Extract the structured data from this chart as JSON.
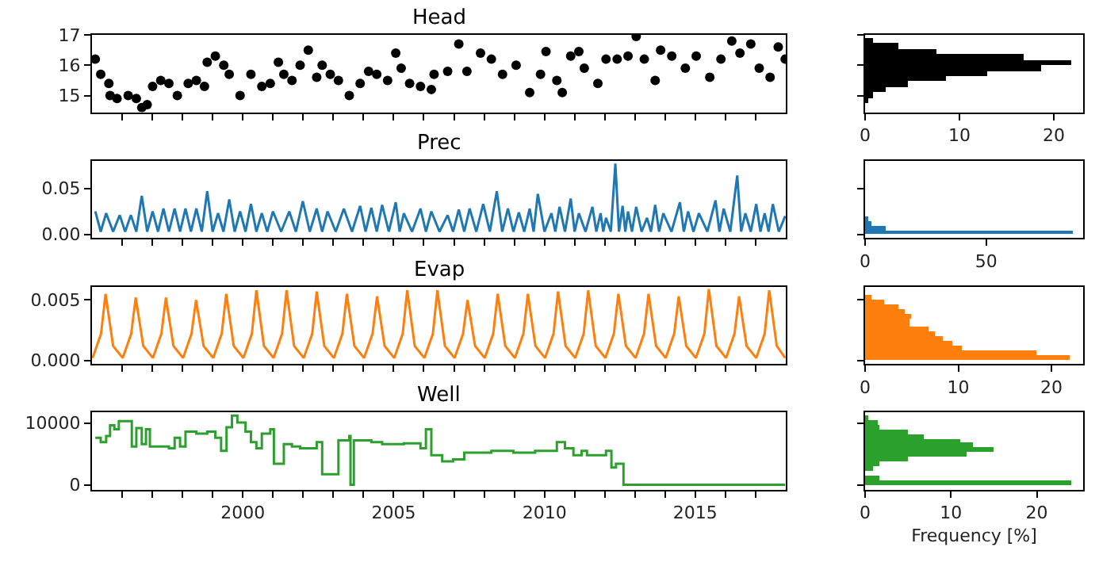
{
  "chart_data": [
    {
      "type": "scatter",
      "title": "Head",
      "marker": "circle",
      "color": "#000000",
      "tick_labels": "y",
      "x": [
        1995.11,
        1995.29,
        1995.56,
        1995.6,
        1995.83,
        1996.2,
        1996.47,
        1996.65,
        1996.83,
        1997.01,
        1997.28,
        1997.55,
        1997.83,
        1998.19,
        1998.46,
        1998.73,
        1998.82,
        1999.09,
        1999.37,
        1999.55,
        1999.91,
        2000.27,
        2000.63,
        2000.91,
        2001.18,
        2001.36,
        2001.63,
        2001.9,
        2002.17,
        2002.45,
        2002.63,
        2002.9,
        2003.17,
        2003.53,
        2003.89,
        2004.17,
        2004.44,
        2004.8,
        2005.07,
        2005.25,
        2005.53,
        2005.89,
        2006.25,
        2006.34,
        2006.79,
        2007.16,
        2007.43,
        2007.88,
        2008.24,
        2008.61,
        2009.06,
        2009.51,
        2009.87,
        2010.05,
        2010.41,
        2010.59,
        2010.87,
        2011.14,
        2011.32,
        2011.77,
        2012.04,
        2012.41,
        2012.77,
        2013.04,
        2013.31,
        2013.67,
        2013.85,
        2014.22,
        2014.67,
        2015.03,
        2015.48,
        2015.85,
        2016.21,
        2016.48,
        2016.84,
        2017.12,
        2017.48,
        2017.75,
        2017.98
      ],
      "values": [
        16.2,
        15.7,
        15.4,
        15.0,
        14.9,
        15.0,
        14.9,
        14.6,
        14.7,
        15.3,
        15.5,
        15.4,
        15.0,
        15.4,
        15.5,
        15.3,
        16.1,
        16.3,
        16.0,
        15.7,
        15.0,
        15.7,
        15.3,
        15.4,
        16.1,
        15.7,
        15.5,
        16.0,
        16.5,
        15.6,
        16.0,
        15.7,
        15.5,
        15.0,
        15.4,
        15.8,
        15.7,
        15.5,
        16.4,
        15.9,
        15.4,
        15.3,
        15.2,
        15.7,
        15.8,
        16.7,
        15.8,
        16.4,
        16.2,
        15.7,
        16.0,
        15.1,
        15.7,
        16.45,
        15.5,
        15.1,
        16.3,
        16.45,
        15.9,
        15.4,
        16.2,
        16.2,
        16.3,
        16.95,
        16.2,
        15.5,
        16.5,
        16.3,
        15.9,
        16.3,
        15.6,
        16.2,
        16.8,
        16.4,
        16.7,
        15.9,
        15.6,
        16.6,
        16.2
      ],
      "xlim": [
        1995,
        2018
      ],
      "xticks": [
        {
          "value": 1996,
          "label": null
        },
        {
          "value": 1997,
          "label": null
        },
        {
          "value": 1998,
          "label": null
        },
        {
          "value": 1999,
          "label": null
        },
        2000,
        {
          "value": 2001,
          "label": null
        },
        {
          "value": 2002,
          "label": null
        },
        {
          "value": 2003,
          "label": null
        },
        {
          "value": 2004,
          "label": null
        },
        2005,
        {
          "value": 2006,
          "label": null
        },
        {
          "value": 2007,
          "label": null
        },
        {
          "value": 2008,
          "label": null
        },
        {
          "value": 2009,
          "label": null
        },
        2010,
        {
          "value": 2011,
          "label": null
        },
        {
          "value": 2012,
          "label": null
        },
        {
          "value": 2013,
          "label": null
        },
        {
          "value": 2014,
          "label": null
        },
        2015,
        {
          "value": 2016,
          "label": null
        },
        {
          "value": 2017,
          "label": null
        }
      ],
      "ylim": [
        14.45,
        17.0
      ],
      "yticks": [
        15,
        16,
        17
      ]
    },
    {
      "type": "histogram",
      "orientation": "horizontal",
      "color": "#000000",
      "tick_labels": "x",
      "bins": [
        14.74,
        14.92,
        15.1,
        15.28,
        15.46,
        15.64,
        15.82,
        16.0,
        16.18,
        16.36,
        16.54,
        16.72,
        16.9
      ],
      "values": [
        0.4,
        0.9,
        2.2,
        4.5,
        8.5,
        12.9,
        18.6,
        21.9,
        16.8,
        7.5,
        3.6,
        0.9
      ],
      "xlim": [
        0,
        23.1
      ],
      "xticks": [
        0,
        10,
        20
      ],
      "ylim": [
        14.45,
        17.0
      ],
      "yticks": [
        15,
        16,
        17
      ]
    },
    {
      "type": "line",
      "title": "Prec",
      "color": "#1f77b4",
      "tick_labels": "y",
      "x": [
        1995.11,
        1995.29,
        1995.47,
        1995.7,
        1995.92,
        1996.1,
        1996.29,
        1996.47,
        1996.65,
        1996.83,
        1997.01,
        1997.19,
        1997.37,
        1997.55,
        1997.74,
        1997.92,
        1998.1,
        1998.28,
        1998.46,
        1998.64,
        1998.82,
        1999.0,
        1999.18,
        1999.36,
        1999.55,
        1999.73,
        1999.91,
        2000.09,
        2000.27,
        2000.45,
        2000.63,
        2000.81,
        2001.0,
        2001.27,
        2001.54,
        2001.76,
        2001.99,
        2002.22,
        2002.45,
        2002.63,
        2002.81,
        2003.08,
        2003.35,
        2003.62,
        2003.89,
        2004.07,
        2004.26,
        2004.44,
        2004.62,
        2004.84,
        2005.07,
        2005.2,
        2005.34,
        2005.61,
        2005.89,
        2006.07,
        2006.25,
        2006.52,
        2006.79,
        2006.97,
        2007.16,
        2007.34,
        2007.52,
        2007.74,
        2007.97,
        2008.19,
        2008.42,
        2008.6,
        2008.79,
        2008.97,
        2009.15,
        2009.33,
        2009.51,
        2009.64,
        2009.78,
        2010.0,
        2010.23,
        2010.36,
        2010.5,
        2010.68,
        2010.87,
        2011.0,
        2011.14,
        2011.36,
        2011.59,
        2011.72,
        2011.86,
        2011.95,
        2012.04,
        2012.2,
        2012.35,
        2012.47,
        2012.59,
        2012.68,
        2012.77,
        2012.9,
        2013.04,
        2013.22,
        2013.4,
        2013.53,
        2013.67,
        2013.8,
        2013.94,
        2014.21,
        2014.49,
        2014.62,
        2014.76,
        2014.94,
        2015.12,
        2015.4,
        2015.67,
        2015.8,
        2015.94,
        2016.16,
        2016.39,
        2016.52,
        2016.66,
        2016.84,
        2017.02,
        2017.16,
        2017.3,
        2017.43,
        2017.57,
        2017.77,
        2017.98
      ],
      "values": [
        0.025,
        0.003,
        0.023,
        0.003,
        0.021,
        0.003,
        0.021,
        0.003,
        0.042,
        0.003,
        0.025,
        0.003,
        0.028,
        0.003,
        0.028,
        0.003,
        0.028,
        0.003,
        0.028,
        0.003,
        0.047,
        0.003,
        0.023,
        0.003,
        0.038,
        0.003,
        0.025,
        0.003,
        0.033,
        0.003,
        0.023,
        0.003,
        0.025,
        0.003,
        0.025,
        0.003,
        0.036,
        0.003,
        0.028,
        0.003,
        0.025,
        0.003,
        0.028,
        0.003,
        0.031,
        0.003,
        0.029,
        0.003,
        0.032,
        0.003,
        0.035,
        0.003,
        0.023,
        0.003,
        0.028,
        0.003,
        0.025,
        0.003,
        0.021,
        0.003,
        0.027,
        0.003,
        0.028,
        0.003,
        0.033,
        0.003,
        0.047,
        0.003,
        0.028,
        0.003,
        0.024,
        0.003,
        0.028,
        0.003,
        0.044,
        0.003,
        0.023,
        0.003,
        0.03,
        0.003,
        0.039,
        0.003,
        0.023,
        0.003,
        0.03,
        0.003,
        0.023,
        0.003,
        0.018,
        0.003,
        0.077,
        0.003,
        0.031,
        0.003,
        0.025,
        0.003,
        0.03,
        0.003,
        0.018,
        0.003,
        0.032,
        0.003,
        0.023,
        0.003,
        0.035,
        0.003,
        0.025,
        0.003,
        0.023,
        0.003,
        0.037,
        0.003,
        0.028,
        0.003,
        0.064,
        0.003,
        0.023,
        0.003,
        0.033,
        0.003,
        0.023,
        0.003,
        0.033,
        0.003,
        0.02
      ],
      "xlim": [
        1995,
        2018
      ],
      "xticks": [
        {
          "value": 1996,
          "label": null
        },
        {
          "value": 1997,
          "label": null
        },
        {
          "value": 1998,
          "label": null
        },
        {
          "value": 1999,
          "label": null
        },
        2000,
        {
          "value": 2001,
          "label": null
        },
        {
          "value": 2002,
          "label": null
        },
        {
          "value": 2003,
          "label": null
        },
        {
          "value": 2004,
          "label": null
        },
        2005,
        {
          "value": 2006,
          "label": null
        },
        {
          "value": 2007,
          "label": null
        },
        {
          "value": 2008,
          "label": null
        },
        {
          "value": 2009,
          "label": null
        },
        2010,
        {
          "value": 2011,
          "label": null
        },
        {
          "value": 2012,
          "label": null
        },
        {
          "value": 2013,
          "label": null
        },
        {
          "value": 2014,
          "label": null
        },
        2015,
        {
          "value": 2016,
          "label": null
        },
        {
          "value": 2017,
          "label": null
        }
      ],
      "ylim": [
        -0.004,
        0.08
      ],
      "yticks": [
        {
          "value": 0,
          "label": "0.00"
        },
        0.05
      ]
    },
    {
      "type": "histogram",
      "orientation": "horizontal",
      "color": "#1f77b4",
      "tick_labels": "x",
      "bins": [
        0,
        0.005,
        0.01,
        0.015,
        0.02
      ],
      "values": [
        86,
        8.6,
        2.8,
        0.9
      ],
      "xlim": [
        0,
        90
      ],
      "xticks": [
        0,
        50
      ],
      "ylim": [
        -0.004,
        0.08
      ],
      "yticks": [
        0,
        0.05
      ]
    },
    {
      "type": "line",
      "title": "Evap",
      "color": "#ff7f0e",
      "tick_labels": "y",
      "x": [
        1995.02,
        1995.3,
        1995.45,
        1995.7,
        1996.02,
        1996.3,
        1996.45,
        1996.7,
        1997.02,
        1997.3,
        1997.45,
        1997.7,
        1998.02,
        1998.3,
        1998.45,
        1998.7,
        1999.02,
        1999.3,
        1999.45,
        1999.7,
        2000.02,
        2000.3,
        2000.45,
        2000.7,
        2001.02,
        2001.3,
        2001.45,
        2001.7,
        2002.02,
        2002.3,
        2002.45,
        2002.7,
        2003.02,
        2003.3,
        2003.45,
        2003.7,
        2004.02,
        2004.3,
        2004.45,
        2004.7,
        2005.02,
        2005.3,
        2005.45,
        2005.7,
        2006.02,
        2006.3,
        2006.45,
        2006.7,
        2007.02,
        2007.3,
        2007.45,
        2007.7,
        2008.02,
        2008.3,
        2008.45,
        2008.7,
        2009.02,
        2009.3,
        2009.45,
        2009.7,
        2010.02,
        2010.3,
        2010.45,
        2010.7,
        2011.02,
        2011.3,
        2011.45,
        2011.7,
        2012.02,
        2012.3,
        2012.45,
        2012.7,
        2013.02,
        2013.3,
        2013.45,
        2013.7,
        2014.02,
        2014.3,
        2014.45,
        2014.7,
        2015.02,
        2015.3,
        2015.45,
        2015.7,
        2016.02,
        2016.3,
        2016.45,
        2016.7,
        2017.02,
        2017.3,
        2017.45,
        2017.7,
        2017.98
      ],
      "values": [
        0.0002,
        0.0022,
        0.0055,
        0.0012,
        0.0002,
        0.0022,
        0.0052,
        0.0012,
        0.0002,
        0.0022,
        0.0052,
        0.0012,
        0.0002,
        0.0022,
        0.005,
        0.0012,
        0.0002,
        0.0022,
        0.0055,
        0.0012,
        0.0002,
        0.0022,
        0.0058,
        0.0012,
        0.0002,
        0.0022,
        0.0058,
        0.0012,
        0.0002,
        0.0022,
        0.0057,
        0.0012,
        0.0002,
        0.0022,
        0.0055,
        0.0012,
        0.0002,
        0.0022,
        0.0053,
        0.0012,
        0.0002,
        0.0022,
        0.0058,
        0.0012,
        0.0002,
        0.0022,
        0.0058,
        0.0012,
        0.0002,
        0.0022,
        0.005,
        0.0012,
        0.0002,
        0.0022,
        0.0055,
        0.0012,
        0.0002,
        0.0022,
        0.0055,
        0.0012,
        0.0002,
        0.0022,
        0.0057,
        0.0012,
        0.0002,
        0.0022,
        0.0058,
        0.0012,
        0.0002,
        0.0022,
        0.0055,
        0.0012,
        0.0002,
        0.0022,
        0.0055,
        0.0012,
        0.0002,
        0.0022,
        0.0053,
        0.0012,
        0.0002,
        0.0022,
        0.0059,
        0.0012,
        0.0002,
        0.0022,
        0.0053,
        0.0012,
        0.0002,
        0.0022,
        0.0058,
        0.0012,
        0.0002
      ],
      "xlim": [
        1995,
        2018
      ],
      "xticks": [
        {
          "value": 1996,
          "label": null
        },
        {
          "value": 1997,
          "label": null
        },
        {
          "value": 1998,
          "label": null
        },
        {
          "value": 1999,
          "label": null
        },
        2000,
        {
          "value": 2001,
          "label": null
        },
        {
          "value": 2002,
          "label": null
        },
        {
          "value": 2003,
          "label": null
        },
        {
          "value": 2004,
          "label": null
        },
        2005,
        {
          "value": 2006,
          "label": null
        },
        {
          "value": 2007,
          "label": null
        },
        {
          "value": 2008,
          "label": null
        },
        {
          "value": 2009,
          "label": null
        },
        2010,
        {
          "value": 2011,
          "label": null
        },
        {
          "value": 2012,
          "label": null
        },
        {
          "value": 2013,
          "label": null
        },
        {
          "value": 2014,
          "label": null
        },
        2015,
        {
          "value": 2016,
          "label": null
        },
        {
          "value": 2017,
          "label": null
        }
      ],
      "ylim": [
        -0.0003,
        0.0061
      ],
      "yticks": [
        {
          "value": 0,
          "label": "0.000"
        },
        0.005
      ]
    },
    {
      "type": "histogram",
      "orientation": "horizontal",
      "color": "#ff7f0e",
      "tick_labels": "x",
      "bins": [
        0.0001,
        0.00048,
        0.00086,
        0.00124,
        0.00162,
        0.002,
        0.00239,
        0.00277,
        0.00315,
        0.00353,
        0.00391,
        0.00429,
        0.00467,
        0.00505,
        0.00543
      ],
      "values": [
        21.9,
        18.3,
        10.4,
        9.3,
        8.3,
        7.5,
        6.8,
        4.7,
        4.7,
        4.9,
        4.2,
        3.5,
        2.1,
        0.7
      ],
      "xlim": [
        0,
        23.4
      ],
      "xticks": [
        0,
        10,
        20
      ],
      "ylim": [
        -0.0003,
        0.0061
      ],
      "yticks": [
        0,
        0.005
      ]
    },
    {
      "type": "step",
      "title": "Well",
      "color": "#2ca02c",
      "x": [
        1995.11,
        1995.29,
        1995.47,
        1995.6,
        1995.74,
        1995.89,
        1996.2,
        1996.32,
        1996.47,
        1996.65,
        1996.79,
        1996.92,
        1997.37,
        1997.55,
        1997.74,
        1997.92,
        1998.1,
        1998.46,
        1998.82,
        1999.09,
        1999.28,
        1999.46,
        1999.64,
        1999.82,
        2000.09,
        2000.27,
        2000.45,
        2000.63,
        2000.91,
        2001.03,
        2001.36,
        2001.63,
        2001.9,
        2002.45,
        2002.63,
        2003.08,
        2003.17,
        2003.53,
        2003.57,
        2003.68,
        2004.26,
        2004.62,
        2005.34,
        2005.89,
        2006.07,
        2006.25,
        2006.61,
        2006.97,
        2007.34,
        2008.24,
        2008.97,
        2009.69,
        2010.05,
        2010.41,
        2010.68,
        2010.96,
        2011.23,
        2011.41,
        2011.86,
        2012.04,
        2012.22,
        2012.37,
        2012.62,
        2017.98
      ],
      "values": [
        7600,
        6900,
        7900,
        9650,
        9000,
        10300,
        10300,
        6200,
        9200,
        6600,
        9000,
        6200,
        6200,
        5900,
        7600,
        6200,
        8600,
        8300,
        8600,
        7600,
        5500,
        9300,
        11200,
        10100,
        8600,
        6900,
        5900,
        8300,
        9000,
        3400,
        6600,
        6200,
        5900,
        6900,
        1700,
        1700,
        7200,
        7900,
        0,
        7200,
        6900,
        6600,
        6700,
        5900,
        9000,
        4800,
        3800,
        4100,
        5200,
        5500,
        5200,
        5500,
        5500,
        6900,
        5900,
        4800,
        5500,
        4800,
        4800,
        5500,
        2800,
        3400,
        0,
        0
      ],
      "xlim": [
        1995,
        2018
      ],
      "xticks": [
        {
          "value": 1996,
          "label": null
        },
        {
          "value": 1997,
          "label": null
        },
        {
          "value": 1998,
          "label": null
        },
        {
          "value": 1999,
          "label": null
        },
        2000,
        {
          "value": 2001,
          "label": null
        },
        {
          "value": 2002,
          "label": null
        },
        {
          "value": 2003,
          "label": null
        },
        {
          "value": 2004,
          "label": null
        },
        2005,
        {
          "value": 2006,
          "label": null
        },
        {
          "value": 2007,
          "label": null
        },
        {
          "value": 2008,
          "label": null
        },
        {
          "value": 2009,
          "label": null
        },
        2010,
        {
          "value": 2011,
          "label": null
        },
        {
          "value": 2012,
          "label": null
        },
        {
          "value": 2013,
          "label": null
        },
        {
          "value": 2014,
          "label": null
        },
        2015,
        {
          "value": 2016,
          "label": null
        },
        {
          "value": 2017,
          "label": null
        }
      ],
      "ylim": [
        -830,
        11700
      ],
      "yticks": [
        0,
        10000
      ]
    },
    {
      "type": "histogram",
      "orientation": "horizontal",
      "color": "#2ca02c",
      "tick_labels": "x",
      "xlabel": "Frequency [%]",
      "bins": [
        0,
        745,
        1490,
        2235,
        2980,
        3725,
        4470,
        5215,
        5960,
        6705,
        7450,
        8195,
        8940,
        9685,
        10430,
        11175
      ],
      "values": [
        24.0,
        1.7,
        0,
        1.0,
        1.7,
        5.0,
        11.8,
        14.9,
        12.6,
        11.0,
        6.8,
        5.0,
        1.7,
        1.4,
        0.3
      ],
      "xlim": [
        0,
        25.4
      ],
      "xticks": [
        0,
        10,
        20
      ],
      "ylim": [
        -830,
        11700
      ],
      "yticks": [
        0,
        10000
      ]
    }
  ]
}
